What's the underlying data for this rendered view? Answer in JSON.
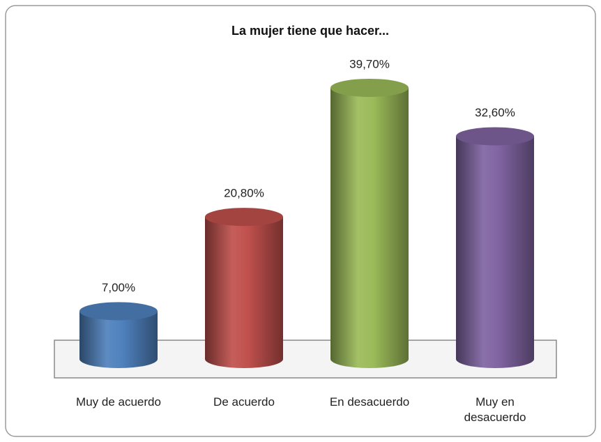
{
  "chart_data": {
    "type": "bar",
    "title": "La mujer tiene que hacer...",
    "categories": [
      "Muy de acuerdo",
      "De acuerdo",
      "En desacuerdo",
      "Muy en desacuerdo"
    ],
    "values": [
      7.0,
      20.8,
      39.7,
      32.6
    ],
    "value_labels": [
      "7,00%",
      "20,80%",
      "39,70%",
      "32,60%"
    ],
    "colors": [
      "#4f81bd",
      "#c0504d",
      "#9bbb59",
      "#8064a2"
    ]
  }
}
